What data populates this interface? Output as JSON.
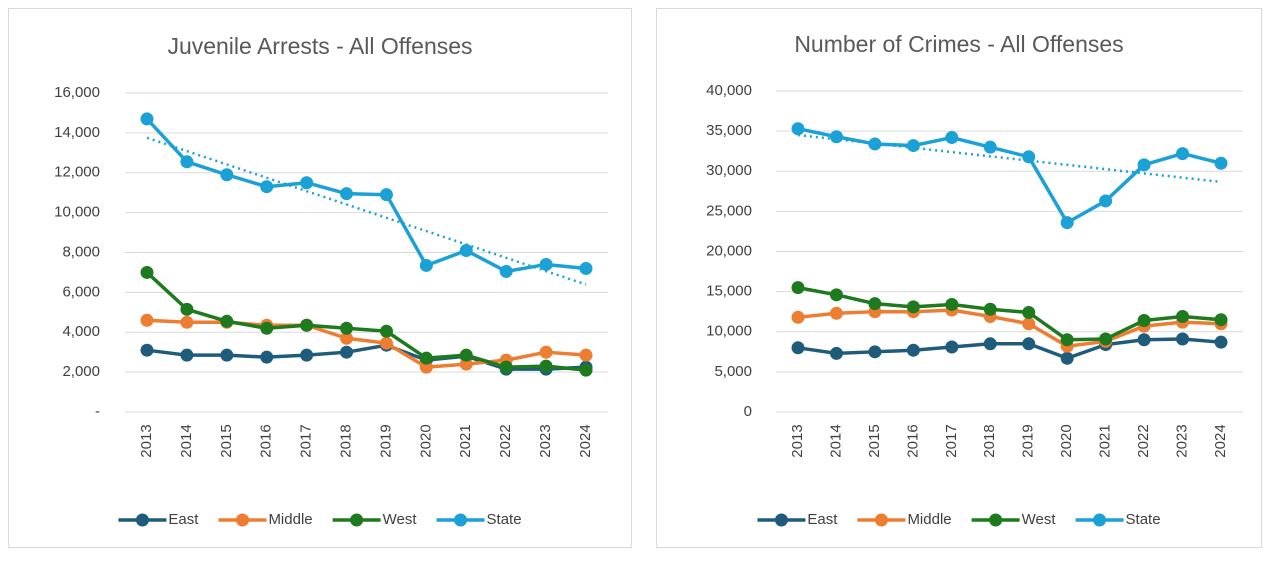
{
  "chart_data": [
    {
      "type": "line",
      "title": "Juvenile Arrests - All Offenses",
      "categories": [
        "2013",
        "2014",
        "2015",
        "2016",
        "2017",
        "2018",
        "2019",
        "2020",
        "2021",
        "2022",
        "2023",
        "2024"
      ],
      "ylim": [
        0,
        16000
      ],
      "yticks": [
        {
          "value": 0,
          "label": "-"
        },
        {
          "value": 2000,
          "label": "2,000"
        },
        {
          "value": 4000,
          "label": "4,000"
        },
        {
          "value": 6000,
          "label": "6,000"
        },
        {
          "value": 8000,
          "label": "8,000"
        },
        {
          "value": 10000,
          "label": "10,000"
        },
        {
          "value": 12000,
          "label": "12,000"
        },
        {
          "value": 14000,
          "label": "14,000"
        },
        {
          "value": 16000,
          "label": "16,000"
        }
      ],
      "grid": true,
      "series": [
        {
          "name": "East",
          "color": "#1f5c7c",
          "values": [
            3100,
            2850,
            2850,
            2750,
            2850,
            3000,
            3350,
            2600,
            2800,
            2150,
            2150,
            2250
          ]
        },
        {
          "name": "Middle",
          "color": "#ed7d31",
          "values": [
            4600,
            4500,
            4500,
            4350,
            4350,
            3700,
            3450,
            2250,
            2400,
            2600,
            3000,
            2850
          ]
        },
        {
          "name": "West",
          "color": "#1e7a1e",
          "values": [
            7000,
            5150,
            4550,
            4200,
            4350,
            4200,
            4050,
            2700,
            2850,
            2250,
            2300,
            2100
          ]
        },
        {
          "name": "State",
          "color": "#1ba1d6",
          "trendline": "linear",
          "values": [
            14700,
            12550,
            11900,
            11300,
            11500,
            10950,
            10900,
            7350,
            8100,
            7050,
            7400,
            7200
          ]
        }
      ]
    },
    {
      "type": "line",
      "title": "Number of Crimes - All Offenses",
      "categories": [
        "2013",
        "2014",
        "2015",
        "2016",
        "2017",
        "2018",
        "2019",
        "2020",
        "2021",
        "2022",
        "2023",
        "2024"
      ],
      "ylim": [
        0,
        40000
      ],
      "yticks": [
        0,
        {
          "value": 5000,
          "label": "5,000"
        },
        {
          "value": 10000,
          "label": "10,000"
        },
        {
          "value": 15000,
          "label": "15,000"
        },
        {
          "value": 20000,
          "label": "20,000"
        },
        {
          "value": 25000,
          "label": "25,000"
        },
        {
          "value": 30000,
          "label": "30,000"
        },
        {
          "value": 35000,
          "label": "35,000"
        },
        {
          "value": 40000,
          "label": "40,000"
        }
      ],
      "grid": true,
      "series": [
        {
          "name": "East",
          "color": "#1f5c7c",
          "values": [
            8000,
            7300,
            7500,
            7700,
            8100,
            8500,
            8500,
            6700,
            8400,
            9000,
            9100,
            8700
          ]
        },
        {
          "name": "Middle",
          "color": "#ed7d31",
          "values": [
            11800,
            12300,
            12500,
            12500,
            12700,
            11900,
            11000,
            8200,
            8800,
            10700,
            11200,
            11000
          ]
        },
        {
          "name": "West",
          "color": "#1e7a1e",
          "values": [
            15500,
            14600,
            13500,
            13100,
            13400,
            12800,
            12400,
            9000,
            9100,
            11400,
            11900,
            11500
          ]
        },
        {
          "name": "State",
          "color": "#1ba1d6",
          "trendline": "linear",
          "values": [
            35300,
            34300,
            33400,
            33200,
            34200,
            33000,
            31800,
            23600,
            26300,
            30800,
            32200,
            31000
          ]
        }
      ]
    }
  ]
}
